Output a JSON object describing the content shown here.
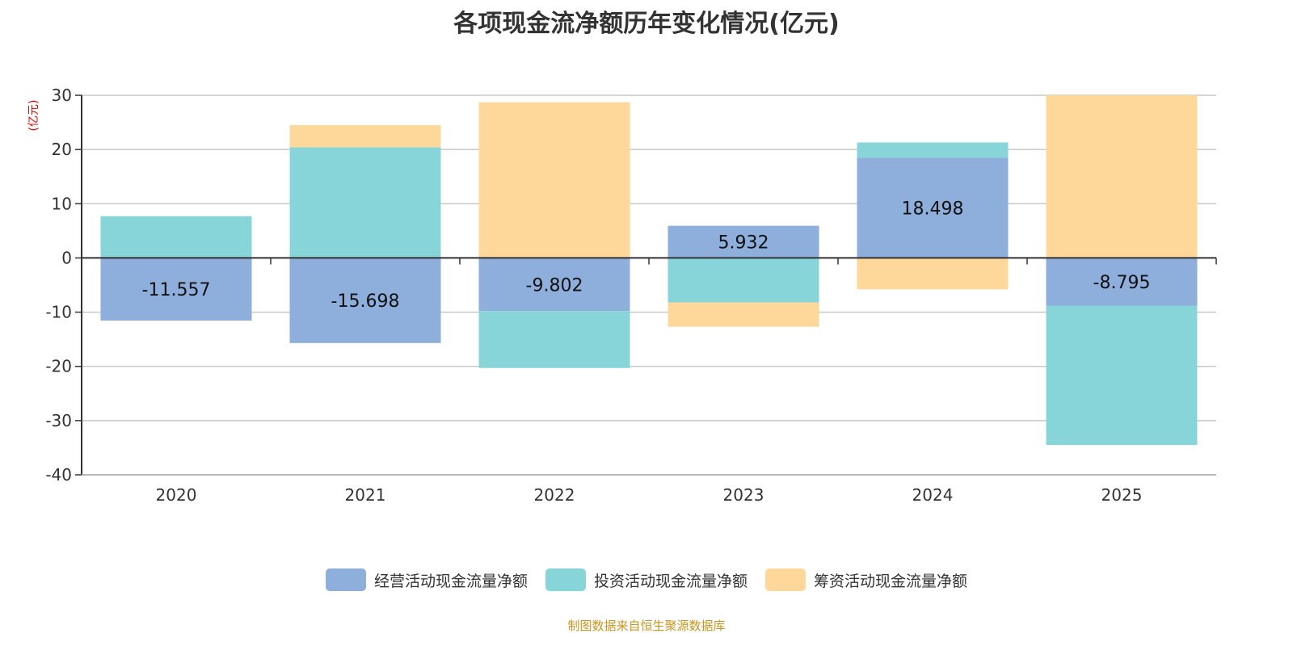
{
  "chart_data": {
    "type": "bar",
    "stacked": true,
    "title": "各项现金流净额历年变化情况(亿元)",
    "ylabel": "(亿元)",
    "xlabel": "",
    "categories": [
      "2020",
      "2021",
      "2022",
      "2023",
      "2024",
      "2025"
    ],
    "ylim": [
      -40,
      30
    ],
    "yticks": [
      30,
      20,
      10,
      0,
      -10,
      -20,
      -30,
      -40
    ],
    "grid": true,
    "legend_position": "bottom",
    "series": [
      {
        "name": "经营活动现金流量净额",
        "color": "#8eaedb",
        "values": [
          -11.557,
          -15.698,
          -9.802,
          5.932,
          18.498,
          -8.795
        ],
        "labels": [
          "-11.557",
          "-15.698",
          "-9.802",
          "5.932",
          "18.498",
          "-8.795"
        ]
      },
      {
        "name": "投资活动现金流量净额",
        "color": "#88d5d9",
        "values": [
          7.7,
          20.4,
          -10.5,
          -8.2,
          2.8,
          -25.7
        ]
      },
      {
        "name": "筹资活动现金流量净额",
        "color": "#fed89b",
        "values": [
          0,
          4.1,
          28.7,
          -4.5,
          -5.8,
          30.0
        ]
      }
    ]
  },
  "source": "制图数据来自恒生聚源数据库"
}
